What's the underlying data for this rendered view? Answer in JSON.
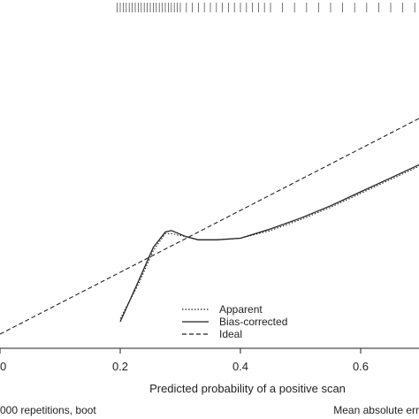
{
  "chart_data": {
    "type": "line",
    "title": "",
    "xlabel": "Predicted probability of a positive scan",
    "ylabel": "",
    "xlim": [
      0.0,
      0.72
    ],
    "ylim": [
      0.0,
      0.75
    ],
    "x_ticks": [
      {
        "value": 0.0,
        "label": "0"
      },
      {
        "value": 0.2,
        "label": "0.2"
      },
      {
        "value": 0.4,
        "label": "0.4"
      },
      {
        "value": 0.6,
        "label": "0.6"
      }
    ],
    "grid": false,
    "legend": {
      "position": "bottom-center"
    },
    "series": [
      {
        "name": "Apparent",
        "style": "dotted",
        "color": "#222222",
        "x": [
          0.2,
          0.23,
          0.255,
          0.275,
          0.285,
          0.31,
          0.33,
          0.36,
          0.4,
          0.45,
          0.5,
          0.55,
          0.6,
          0.65,
          0.7,
          0.72
        ],
        "y": [
          0.05,
          0.16,
          0.27,
          0.325,
          0.325,
          0.315,
          0.305,
          0.305,
          0.31,
          0.335,
          0.37,
          0.41,
          0.455,
          0.5,
          0.545,
          0.56
        ]
      },
      {
        "name": "Bias-corrected",
        "style": "solid",
        "color": "#222222",
        "x": [
          0.2,
          0.23,
          0.255,
          0.275,
          0.285,
          0.31,
          0.33,
          0.36,
          0.4,
          0.45,
          0.5,
          0.55,
          0.6,
          0.65,
          0.7,
          0.72
        ],
        "y": [
          0.04,
          0.17,
          0.28,
          0.33,
          0.335,
          0.315,
          0.305,
          0.305,
          0.31,
          0.34,
          0.375,
          0.415,
          0.46,
          0.505,
          0.55,
          0.565
        ]
      },
      {
        "name": "Ideal",
        "style": "dashed",
        "color": "#222222",
        "x": [
          0.0,
          0.72
        ],
        "y": [
          0.0,
          0.72
        ]
      }
    ],
    "rug": [
      0.195,
      0.2,
      0.205,
      0.21,
      0.215,
      0.22,
      0.225,
      0.23,
      0.235,
      0.24,
      0.245,
      0.25,
      0.255,
      0.26,
      0.265,
      0.27,
      0.275,
      0.28,
      0.285,
      0.29,
      0.295,
      0.3,
      0.31,
      0.32,
      0.33,
      0.34,
      0.35,
      0.36,
      0.37,
      0.38,
      0.39,
      0.4,
      0.41,
      0.42,
      0.43,
      0.44,
      0.45,
      0.47,
      0.49,
      0.51,
      0.53,
      0.55,
      0.57,
      0.59,
      0.61,
      0.63,
      0.65,
      0.67,
      0.69,
      0.71
    ],
    "footnotes": {
      "left": "000 repetitions, boot",
      "right": "Mean absolute err"
    }
  }
}
